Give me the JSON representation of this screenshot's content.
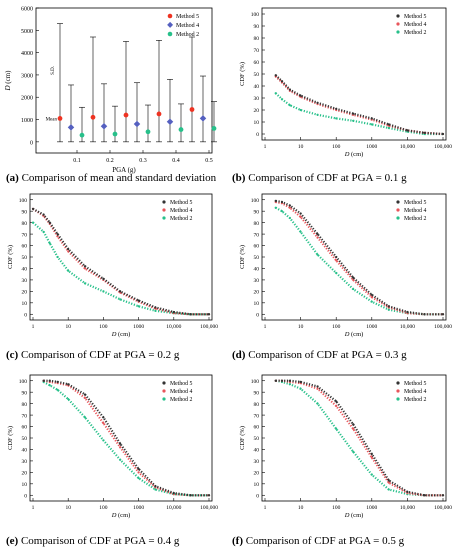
{
  "palette": {
    "method5": "#333333",
    "method4": "#e8555a",
    "method2": "#27c08a",
    "accent5_a": "#ee3322",
    "accent4_a": "#5560c0"
  },
  "chart_data": [
    {
      "id": "a",
      "type": "scatter",
      "caption_letter": "(a)",
      "caption_text": "Comparison of mean and standard deviation",
      "xlabel": "PGA (g)",
      "ylabel_italic": "D",
      "ylabel_unit": "(cm)",
      "x_ticks": [
        "0.1",
        "0.2",
        "0.3",
        "0.4",
        "0.5"
      ],
      "y_ticks": [
        "0",
        "1000",
        "2000",
        "3000",
        "4000",
        "5000",
        "6000"
      ],
      "ylim": [
        -500,
        6000
      ],
      "annotations": {
        "sd": "S.D.",
        "mean": "Mean"
      },
      "legend": [
        "Method 5",
        "Method 4",
        "Method 2"
      ],
      "series": [
        {
          "name": "Method 5",
          "mean": [
            1050,
            1100,
            1200,
            1250,
            1450
          ],
          "upper": [
            5300,
            4700,
            4500,
            4550,
            4700
          ],
          "lower": [
            0,
            0,
            0,
            0,
            0
          ]
        },
        {
          "name": "Method 4",
          "mean": [
            650,
            700,
            800,
            900,
            1050
          ],
          "upper": [
            2550,
            2600,
            2650,
            2800,
            2950
          ],
          "lower": [
            0,
            0,
            0,
            0,
            0
          ]
        },
        {
          "name": "Method 2",
          "mean": [
            300,
            350,
            450,
            550,
            600
          ],
          "upper": [
            1550,
            1600,
            1650,
            1700,
            1800
          ],
          "lower": [
            0,
            0,
            0,
            0,
            0
          ]
        }
      ]
    },
    {
      "id": "b",
      "type": "line",
      "caption_letter": "(b)",
      "caption_text": "Comparison of CDF at PGA = 0.1 g",
      "ylabel": "CDF (%)",
      "xlabel_italic": "D",
      "xlabel_unit": "(cm)",
      "x_ticks": [
        "1",
        "10",
        "100",
        "1000",
        "10,000",
        "100,000"
      ],
      "y_ticks": [
        "0",
        "10",
        "20",
        "30",
        "40",
        "50",
        "60",
        "70",
        "80",
        "90",
        "100"
      ],
      "legend": [
        "Method 5",
        "Method 4",
        "Method 2"
      ],
      "x_log": true,
      "ylim": [
        -5,
        105
      ],
      "series": [
        {
          "name": "Method 5",
          "x": [
            2,
            3,
            5,
            10,
            30,
            100,
            300,
            1000,
            3000,
            10000,
            30000,
            100000
          ],
          "y": [
            49,
            44,
            37,
            32,
            26,
            21,
            17,
            13,
            8,
            3,
            1,
            0
          ]
        },
        {
          "name": "Method 4",
          "x": [
            2,
            3,
            5,
            10,
            30,
            100,
            300,
            1000,
            3000,
            10000,
            30000,
            100000
          ],
          "y": [
            48,
            43,
            36,
            31,
            25,
            20,
            16,
            12,
            7,
            3,
            1,
            0
          ]
        },
        {
          "name": "Method 2",
          "x": [
            2,
            3,
            5,
            10,
            30,
            100,
            300,
            1000,
            3000,
            10000,
            30000,
            100000
          ],
          "y": [
            34,
            29,
            24,
            20,
            16,
            13,
            11,
            8,
            5,
            2,
            0,
            0
          ]
        }
      ]
    },
    {
      "id": "c",
      "type": "line",
      "caption_letter": "(c)",
      "caption_text": "Comparison of CDF at PGA = 0.2 g",
      "ylabel": "CDF (%)",
      "xlabel_italic": "D",
      "xlabel_unit": "(cm)",
      "x_ticks": [
        "1",
        "10",
        "100",
        "1000",
        "10,000",
        "100,000"
      ],
      "y_ticks": [
        "0",
        "10",
        "20",
        "30",
        "40",
        "50",
        "60",
        "70",
        "80",
        "90",
        "100"
      ],
      "legend": [
        "Method 5",
        "Method 4",
        "Method 2"
      ],
      "x_log": true,
      "ylim": [
        -5,
        105
      ],
      "series": [
        {
          "name": "Method 5",
          "x": [
            1,
            2,
            3,
            5,
            10,
            30,
            100,
            300,
            1000,
            3000,
            10000,
            30000,
            100000
          ],
          "y": [
            92,
            87,
            80,
            70,
            57,
            42,
            31,
            20,
            12,
            6,
            2,
            0,
            0
          ]
        },
        {
          "name": "Method 4",
          "x": [
            1,
            2,
            3,
            5,
            10,
            30,
            100,
            300,
            1000,
            3000,
            10000,
            30000,
            100000
          ],
          "y": [
            92,
            86,
            79,
            68,
            55,
            40,
            30,
            19,
            11,
            5,
            1,
            0,
            0
          ]
        },
        {
          "name": "Method 2",
          "x": [
            1,
            2,
            3,
            5,
            10,
            30,
            100,
            300,
            1000,
            3000,
            10000,
            30000,
            100000
          ],
          "y": [
            80,
            72,
            62,
            50,
            38,
            27,
            20,
            13,
            7,
            3,
            1,
            0,
            0
          ]
        }
      ]
    },
    {
      "id": "d",
      "type": "line",
      "caption_letter": "(d)",
      "caption_text": "Comparison of CDF at PGA = 0.3 g",
      "ylabel": "CDF (%)",
      "xlabel_italic": "D",
      "xlabel_unit": "(cm)",
      "x_ticks": [
        "1",
        "10",
        "100",
        "1000",
        "10,000",
        "100,000"
      ],
      "y_ticks": [
        "0",
        "10",
        "20",
        "30",
        "40",
        "50",
        "60",
        "70",
        "80",
        "90",
        "100"
      ],
      "legend": [
        "Method 5",
        "Method 4",
        "Method 2"
      ],
      "x_log": true,
      "ylim": [
        -5,
        105
      ],
      "series": [
        {
          "name": "Method 5",
          "x": [
            2,
            3,
            5,
            10,
            30,
            100,
            300,
            1000,
            3000,
            10000,
            30000,
            100000
          ],
          "y": [
            99,
            98,
            95,
            88,
            70,
            50,
            32,
            17,
            7,
            2,
            0,
            0
          ]
        },
        {
          "name": "Method 4",
          "x": [
            2,
            3,
            5,
            10,
            30,
            100,
            300,
            1000,
            3000,
            10000,
            30000,
            100000
          ],
          "y": [
            98,
            97,
            93,
            85,
            67,
            47,
            30,
            15,
            6,
            1,
            0,
            0
          ]
        },
        {
          "name": "Method 2",
          "x": [
            2,
            3,
            5,
            10,
            30,
            100,
            300,
            1000,
            3000,
            10000,
            30000,
            100000
          ],
          "y": [
            93,
            90,
            84,
            72,
            52,
            36,
            22,
            11,
            4,
            1,
            0,
            0
          ]
        }
      ]
    },
    {
      "id": "e",
      "type": "line",
      "caption_letter": "(e)",
      "caption_text": "Comparison of CDF at PGA = 0.4 g",
      "ylabel": "CDF (%)",
      "xlabel_italic": "D",
      "xlabel_unit": "(cm)",
      "x_ticks": [
        "1",
        "10",
        "100",
        "1000",
        "10,000",
        "100,000"
      ],
      "y_ticks": [
        "0",
        "10",
        "20",
        "30",
        "40",
        "50",
        "60",
        "70",
        "80",
        "90",
        "100"
      ],
      "legend": [
        "Method 5",
        "Method 4",
        "Method 2"
      ],
      "x_log": true,
      "ylim": [
        -5,
        105
      ],
      "series": [
        {
          "name": "Method 5",
          "x": [
            2,
            3,
            5,
            10,
            30,
            100,
            300,
            1000,
            3000,
            10000,
            30000,
            100000
          ],
          "y": [
            100,
            100,
            99,
            97,
            88,
            68,
            45,
            23,
            8,
            2,
            0,
            0
          ]
        },
        {
          "name": "Method 4",
          "x": [
            2,
            3,
            5,
            10,
            30,
            100,
            300,
            1000,
            3000,
            10000,
            30000,
            100000
          ],
          "y": [
            100,
            99,
            98,
            96,
            85,
            63,
            42,
            20,
            7,
            1,
            0,
            0
          ]
        },
        {
          "name": "Method 2",
          "x": [
            2,
            3,
            5,
            10,
            30,
            100,
            300,
            1000,
            3000,
            10000,
            30000,
            100000
          ],
          "y": [
            99,
            96,
            92,
            84,
            68,
            48,
            31,
            15,
            5,
            1,
            0,
            0
          ]
        }
      ]
    },
    {
      "id": "f",
      "type": "line",
      "caption_letter": "(f)",
      "caption_text": "Comparison of CDF at PGA = 0.5 g",
      "ylabel": "CDF (%)",
      "xlabel_italic": "D",
      "xlabel_unit": "(cm)",
      "x_ticks": [
        "1",
        "10",
        "100",
        "1000",
        "10,000",
        "100,000"
      ],
      "y_ticks": [
        "0",
        "10",
        "20",
        "30",
        "40",
        "50",
        "60",
        "70",
        "80",
        "90",
        "100"
      ],
      "legend": [
        "Method 5",
        "Method 4",
        "Method 2"
      ],
      "x_log": true,
      "ylim": [
        -5,
        105
      ],
      "series": [
        {
          "name": "Method 5",
          "x": [
            2,
            3,
            5,
            10,
            30,
            100,
            300,
            1000,
            3000,
            10000,
            30000,
            100000
          ],
          "y": [
            100,
            100,
            100,
            99,
            95,
            82,
            62,
            36,
            13,
            3,
            0,
            0
          ]
        },
        {
          "name": "Method 4",
          "x": [
            2,
            3,
            5,
            10,
            30,
            100,
            300,
            1000,
            3000,
            10000,
            30000,
            100000
          ],
          "y": [
            100,
            100,
            99,
            98,
            93,
            78,
            58,
            33,
            11,
            2,
            0,
            0
          ]
        },
        {
          "name": "Method 2",
          "x": [
            2,
            3,
            5,
            10,
            30,
            100,
            300,
            1000,
            3000,
            10000,
            30000,
            100000
          ],
          "y": [
            100,
            99,
            97,
            93,
            80,
            58,
            38,
            18,
            5,
            1,
            0,
            0
          ]
        }
      ]
    }
  ]
}
